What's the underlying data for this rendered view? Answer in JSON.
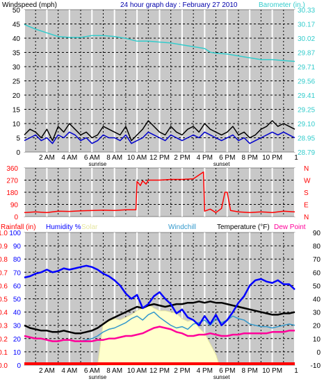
{
  "title": "24 hour graph day : February 27 2010",
  "colors": {
    "background": "#ffffff",
    "plot_bg": "#c8c8c8",
    "major_grid": "#ffffff",
    "minor_grid": "#000000",
    "windspeed": "#0000cc",
    "gust": "#000000",
    "barometer": "#33cccc",
    "direction": "#ff0000",
    "humidity": "#0000ff",
    "solar": "#ffffcc",
    "windchill": "#3399cc",
    "temperature": "#000000",
    "dewpoint": "#ff0099",
    "rainfall": "#ff0000",
    "title_text": "#0000aa"
  },
  "x_ticks": [
    "2 AM",
    "4 AM",
    "6 AM",
    "8 AM",
    "10 AM",
    "12 PM",
    "2 PM",
    "4 PM",
    "6 PM",
    "8 PM",
    "10 PM"
  ],
  "x_end_tick": "1",
  "sunrise_label": "sunrise",
  "sunset_label": "sunset",
  "chart_data": [
    {
      "type": "line",
      "xlabel": "",
      "ylabel": "Windspeed (mph)",
      "y2label": "Barometer (in.)",
      "xlim": [
        0,
        24
      ],
      "ylim": [
        0,
        50
      ],
      "y_ticks": [
        "0",
        "5",
        "10",
        "15",
        "20",
        "25",
        "30",
        "35",
        "40",
        "45",
        "50"
      ],
      "y2lim": [
        28.79,
        30.33
      ],
      "y2_ticks": [
        "28.79",
        "28.95",
        "29.10",
        "29.25",
        "29.41",
        "29.56",
        "29.71",
        "29.87",
        "30.02",
        "30.17",
        "30.33"
      ],
      "series": [
        {
          "name": "Windspeed",
          "axis": "left",
          "color_key": "windspeed",
          "x": [
            0,
            0.5,
            1,
            1.5,
            2,
            2.5,
            3,
            3.5,
            4,
            4.5,
            5,
            5.5,
            6,
            6.5,
            7,
            7.5,
            8,
            8.5,
            9,
            9.5,
            10,
            10.5,
            11,
            11.5,
            12,
            12.5,
            13,
            13.5,
            14,
            14.5,
            15,
            15.5,
            16,
            16.5,
            17,
            17.5,
            18,
            18.5,
            19,
            19.5,
            20,
            20.5,
            21,
            21.5,
            22,
            22.5,
            23,
            23.5,
            24
          ],
          "values": [
            4,
            5,
            6,
            4,
            5,
            3,
            6,
            5,
            7,
            6,
            4,
            5,
            3,
            4,
            6,
            5,
            5,
            4,
            6,
            3,
            4,
            5,
            7,
            6,
            5,
            4,
            6,
            5,
            4,
            5,
            6,
            5,
            7,
            6,
            5,
            4,
            5,
            6,
            4,
            5,
            3,
            4,
            5,
            6,
            7,
            6,
            7,
            6,
            5
          ]
        },
        {
          "name": "Gust",
          "axis": "left",
          "color_key": "gust",
          "x": [
            0,
            0.5,
            1,
            1.5,
            2,
            2.5,
            3,
            3.5,
            4,
            4.5,
            5,
            5.5,
            6,
            6.5,
            7,
            7.5,
            8,
            8.5,
            9,
            9.5,
            10,
            10.5,
            11,
            11.5,
            12,
            12.5,
            13,
            13.5,
            14,
            14.5,
            15,
            15.5,
            16,
            16.5,
            17,
            17.5,
            18,
            18.5,
            19,
            19.5,
            20,
            20.5,
            21,
            21.5,
            22,
            22.5,
            23,
            23.5,
            24
          ],
          "values": [
            6,
            8,
            7,
            5,
            8,
            4,
            9,
            7,
            10,
            8,
            6,
            7,
            5,
            6,
            9,
            8,
            7,
            6,
            9,
            4,
            6,
            8,
            11,
            9,
            7,
            6,
            9,
            7,
            6,
            8,
            9,
            7,
            10,
            8,
            7,
            6,
            7,
            9,
            6,
            7,
            5,
            6,
            8,
            9,
            11,
            9,
            10,
            9,
            8
          ]
        },
        {
          "name": "Barometer",
          "axis": "right",
          "color_key": "barometer",
          "x": [
            0,
            1,
            2,
            3,
            4,
            5,
            6,
            7,
            8,
            9,
            10,
            11,
            12,
            13,
            14,
            15,
            16,
            16.5,
            17,
            18,
            19,
            20,
            21,
            22,
            23,
            24
          ],
          "values": [
            30.17,
            30.12,
            30.08,
            30.04,
            30.03,
            30.03,
            30.05,
            30.05,
            30.04,
            30.02,
            29.99,
            29.99,
            29.98,
            29.97,
            29.95,
            29.93,
            29.91,
            29.87,
            29.86,
            29.85,
            29.83,
            29.81,
            29.79,
            29.79,
            29.78,
            29.77
          ]
        }
      ]
    },
    {
      "type": "line",
      "xlabel": "",
      "ylabel": "",
      "xlim": [
        0,
        24
      ],
      "ylim": [
        0,
        360
      ],
      "y_ticks": [
        "0",
        "90",
        "180",
        "270",
        "360"
      ],
      "y2_ticks": [
        "N",
        "E",
        "S",
        "W",
        "N"
      ],
      "series": [
        {
          "name": "Wind direction",
          "color_key": "direction",
          "x": [
            0,
            1,
            2,
            3,
            4,
            5,
            6,
            7,
            8,
            9,
            9.9,
            10,
            10.3,
            10.5,
            10.8,
            11,
            12,
            13,
            14,
            15,
            15.9,
            16,
            16.5,
            17,
            17.5,
            17.8,
            18,
            18.3,
            19,
            20,
            21,
            22,
            23,
            24
          ],
          "values": [
            30,
            35,
            30,
            40,
            38,
            42,
            45,
            48,
            45,
            50,
            50,
            260,
            230,
            265,
            240,
            270,
            270,
            275,
            275,
            280,
            330,
            40,
            55,
            30,
            60,
            180,
            180,
            45,
            35,
            30,
            35,
            30,
            40,
            35
          ]
        }
      ]
    },
    {
      "type": "area",
      "xlabel": "",
      "ylabel": "Humidity %",
      "y2label": "Temperature (°F)",
      "xlim": [
        0,
        24
      ],
      "ylim": [
        0,
        100
      ],
      "y_ticks": [
        "0",
        "10",
        "20",
        "30",
        "40",
        "50",
        "60",
        "70",
        "80",
        "90",
        "100"
      ],
      "rain_ticks": [
        "0.0",
        "0.1",
        "0.2",
        "0.3",
        "0.4",
        "0.5",
        "0.6",
        "0.7",
        "0.8",
        "0.9",
        "1.0"
      ],
      "y2lim": [
        -10,
        90
      ],
      "y2_ticks": [
        "-10",
        "0",
        "10",
        "20",
        "30",
        "40",
        "50",
        "60",
        "70",
        "80",
        "90"
      ],
      "series": [
        {
          "name": "Rainfall (in)",
          "axis": "rain",
          "color_key": "rainfall",
          "x": [
            0,
            24
          ],
          "values": [
            0,
            0
          ]
        },
        {
          "name": "Humidity",
          "axis": "left",
          "color_key": "humidity",
          "x": [
            0,
            0.5,
            1,
            1.5,
            2,
            2.5,
            3,
            3.5,
            4,
            4.5,
            5,
            5.5,
            6,
            6.5,
            7,
            7.5,
            8,
            8.5,
            9,
            9.5,
            10,
            10.5,
            11,
            11.5,
            12,
            12.5,
            13,
            13.5,
            14,
            14.5,
            15,
            15.5,
            16,
            16.5,
            17,
            17.5,
            18,
            18.5,
            19,
            19.5,
            20,
            20.5,
            21,
            21.5,
            22,
            22.5,
            23,
            23.5,
            24
          ],
          "values": [
            66,
            67,
            69,
            70,
            72,
            70,
            71,
            73,
            72,
            73,
            74,
            75,
            74,
            72,
            69,
            67,
            64,
            60,
            54,
            50,
            53,
            43,
            46,
            52,
            55,
            50,
            46,
            39,
            42,
            36,
            34,
            30,
            37,
            31,
            38,
            30,
            34,
            40,
            47,
            52,
            60,
            64,
            65,
            63,
            62,
            64,
            61,
            61,
            57
          ]
        },
        {
          "name": "Solar",
          "axis": "left",
          "color_key": "solar",
          "x": [
            6.5,
            7,
            7.5,
            8,
            8.5,
            9,
            9.5,
            10,
            10.5,
            11,
            11.5,
            12,
            12.5,
            13,
            13.5,
            14,
            14.5,
            15,
            15.5,
            16,
            16.5,
            17,
            17.3
          ],
          "values": [
            0,
            32,
            33,
            35,
            34,
            36,
            38,
            41,
            43,
            46,
            43,
            41,
            41,
            40,
            39,
            35,
            33,
            34,
            28,
            24,
            16,
            8,
            0
          ]
        },
        {
          "name": "Windchill",
          "axis": "right",
          "color_key": "windchill",
          "x": [
            0,
            0.5,
            1,
            1.5,
            2,
            2.5,
            3,
            3.5,
            4,
            4.5,
            5,
            5.5,
            6,
            6.5,
            7,
            7.5,
            8,
            8.5,
            9,
            9.5,
            10,
            10.5,
            11,
            11.5,
            12,
            12.5,
            13,
            13.5,
            14,
            14.5,
            15,
            15.5,
            16,
            16.5,
            17,
            17.5,
            18,
            18.5,
            19,
            19.5,
            20,
            20.5,
            21,
            21.5,
            22,
            22.5,
            23,
            23.5,
            24
          ],
          "values": [
            12,
            11,
            10,
            10,
            9,
            8,
            8,
            9,
            9,
            8,
            8,
            9,
            10,
            12,
            15,
            17,
            18,
            20,
            22,
            25,
            27,
            24,
            28,
            30,
            26,
            23,
            20,
            18,
            19,
            17,
            21,
            22,
            24,
            20,
            25,
            22,
            24,
            27,
            25,
            24,
            21,
            20,
            19,
            19,
            18,
            19,
            20,
            21,
            20
          ]
        },
        {
          "name": "Temperature",
          "axis": "right",
          "color_key": "temperature",
          "x": [
            0,
            0.5,
            1,
            1.5,
            2,
            2.5,
            3,
            3.5,
            4,
            4.5,
            5,
            5.5,
            6,
            6.5,
            7,
            7.5,
            8,
            8.5,
            9,
            9.5,
            10,
            10.5,
            11,
            11.5,
            12,
            12.5,
            13,
            13.5,
            14,
            14.5,
            15,
            15.5,
            16,
            16.5,
            17,
            17.5,
            18,
            18.5,
            19,
            19.5,
            20,
            20.5,
            21,
            21.5,
            22,
            22.5,
            23,
            23.5,
            24
          ],
          "values": [
            20,
            18,
            17,
            16,
            16,
            15,
            15,
            16,
            15,
            14,
            14,
            15,
            16,
            18,
            21,
            24,
            26,
            28,
            30,
            32,
            34,
            33,
            35,
            36,
            35,
            34,
            35,
            36,
            36,
            37,
            37,
            38,
            37,
            38,
            37,
            37,
            36,
            35,
            34,
            33,
            32,
            31,
            30,
            29,
            28,
            28,
            29,
            29,
            30
          ]
        },
        {
          "name": "Dew Point",
          "axis": "right",
          "color_key": "dewpoint",
          "x": [
            0,
            0.5,
            1,
            1.5,
            2,
            2.5,
            3,
            3.5,
            4,
            4.5,
            5,
            5.5,
            6,
            6.5,
            7,
            7.5,
            8,
            8.5,
            9,
            9.5,
            10,
            10.5,
            11,
            11.5,
            12,
            12.5,
            13,
            13.5,
            14,
            14.5,
            15,
            15.5,
            16,
            16.5,
            17,
            17.5,
            18,
            18.5,
            19,
            19.5,
            20,
            20.5,
            21,
            21.5,
            22,
            22.5,
            23,
            23.5,
            24
          ],
          "values": [
            12,
            11,
            10,
            10,
            9,
            8,
            8,
            9,
            9,
            8,
            8,
            8,
            8,
            9,
            9,
            10,
            10,
            11,
            12,
            12,
            13,
            14,
            16,
            18,
            19,
            18,
            17,
            15,
            14,
            12,
            12,
            13,
            13,
            14,
            13,
            12,
            12,
            13,
            13,
            14,
            14,
            14,
            14,
            14,
            15,
            15,
            15,
            16,
            16
          ]
        }
      ]
    }
  ]
}
